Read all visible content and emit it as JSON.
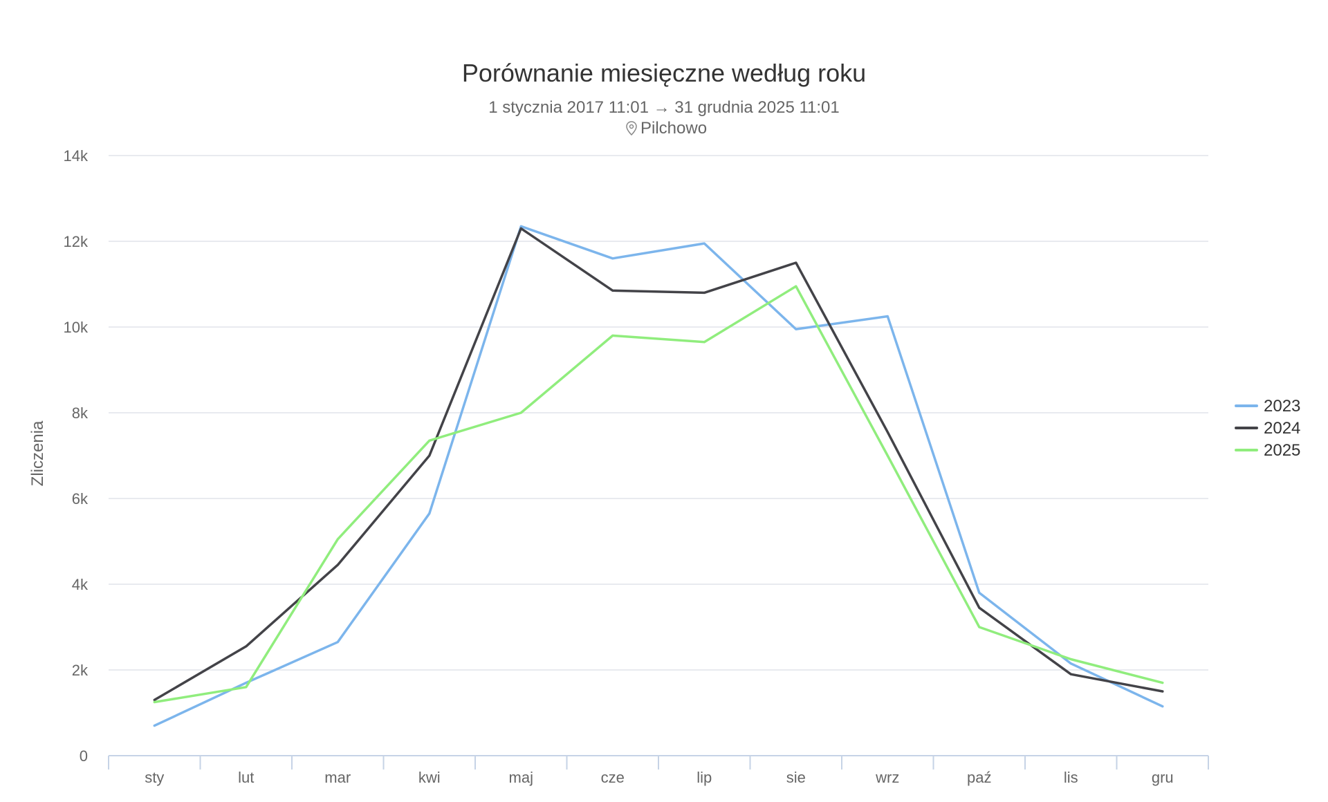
{
  "chart_data": {
    "type": "line",
    "title": "Porównanie miesięczne według roku",
    "subtitle": "1 stycznia 2017 11:01 → 31 grudnia 2025 11:01",
    "location_icon": "map-pin-icon",
    "location": "Pilchowo",
    "ylabel": "Zliczenia",
    "xlabel": "",
    "ylim": [
      0,
      14000
    ],
    "yticks": [
      0,
      2000,
      4000,
      6000,
      8000,
      10000,
      12000,
      14000
    ],
    "ytick_labels": [
      "0",
      "2k",
      "4k",
      "6k",
      "8k",
      "10k",
      "12k",
      "14k"
    ],
    "categories": [
      "sty",
      "lut",
      "mar",
      "kwi",
      "maj",
      "cze",
      "lip",
      "sie",
      "wrz",
      "paź",
      "lis",
      "gru"
    ],
    "grid": true,
    "legend_position": "right",
    "series": [
      {
        "name": "2023",
        "color": "#7cb5ec",
        "values": [
          700,
          1700,
          2650,
          5650,
          12350,
          11600,
          11950,
          9950,
          10250,
          3800,
          2150,
          1150
        ]
      },
      {
        "name": "2024",
        "color": "#434348",
        "values": [
          1300,
          2550,
          4450,
          7000,
          12300,
          10850,
          10800,
          11500,
          7550,
          3450,
          1900,
          1500
        ]
      },
      {
        "name": "2025",
        "color": "#90ed7d",
        "values": [
          1250,
          1600,
          5050,
          7350,
          8000,
          9800,
          9650,
          10950,
          7000,
          3000,
          2250,
          1700
        ]
      }
    ]
  }
}
